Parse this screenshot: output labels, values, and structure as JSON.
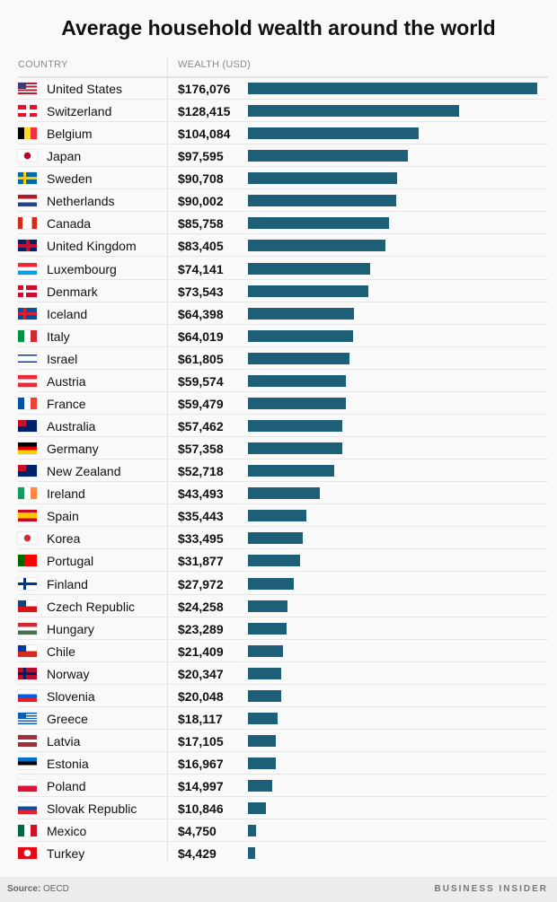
{
  "chart_data": {
    "type": "bar",
    "orientation": "horizontal",
    "title": "Average household wealth around the world",
    "column_headers": [
      "COUNTRY",
      "WEALTH (USD)"
    ],
    "bar_color": "#1e5f78",
    "xlim": [
      0,
      176076
    ],
    "rows": [
      {
        "country": "United States",
        "label": "$176,076",
        "value": 176076,
        "flag": {
          "type": "h",
          "colors": [
            "#b22234",
            "#fff",
            "#b22234",
            "#fff",
            "#b22234",
            "#fff",
            "#b22234"
          ],
          "canton": "#3c3b6e"
        }
      },
      {
        "country": "Switzerland",
        "label": "$128,415",
        "value": 128415,
        "flag": {
          "type": "cross",
          "colors": [
            "#e8112d",
            "#fff"
          ]
        }
      },
      {
        "country": "Belgium",
        "label": "$104,084",
        "value": 104084,
        "flag": {
          "type": "v",
          "colors": [
            "#000",
            "#fdda24",
            "#ef3340"
          ]
        }
      },
      {
        "country": "Japan",
        "label": "$97,595",
        "value": 97595,
        "flag": {
          "type": "disc",
          "colors": [
            "#fff",
            "#bc002d"
          ]
        }
      },
      {
        "country": "Sweden",
        "label": "$90,708",
        "value": 90708,
        "flag": {
          "type": "nordic",
          "colors": [
            "#006aa7",
            "#fecc00"
          ]
        }
      },
      {
        "country": "Netherlands",
        "label": "$90,002",
        "value": 90002,
        "flag": {
          "type": "h",
          "colors": [
            "#ae1c28",
            "#fff",
            "#21468b"
          ]
        }
      },
      {
        "country": "Canada",
        "label": "$85,758",
        "value": 85758,
        "flag": {
          "type": "v",
          "colors": [
            "#d52b1e",
            "#fff",
            "#fff",
            "#d52b1e"
          ]
        }
      },
      {
        "country": "United Kingdom",
        "label": "$83,405",
        "value": 83405,
        "flag": {
          "type": "cross",
          "colors": [
            "#012169",
            "#c8102e"
          ]
        }
      },
      {
        "country": "Luxembourg",
        "label": "$74,141",
        "value": 74141,
        "flag": {
          "type": "h",
          "colors": [
            "#ed2939",
            "#fff",
            "#00a1de"
          ]
        }
      },
      {
        "country": "Denmark",
        "label": "$73,543",
        "value": 73543,
        "flag": {
          "type": "nordic",
          "colors": [
            "#c8102e",
            "#fff"
          ]
        }
      },
      {
        "country": "Iceland",
        "label": "$64,398",
        "value": 64398,
        "flag": {
          "type": "nordic",
          "colors": [
            "#02529c",
            "#dc1e35"
          ]
        }
      },
      {
        "country": "Italy",
        "label": "$64,019",
        "value": 64019,
        "flag": {
          "type": "v",
          "colors": [
            "#009246",
            "#fff",
            "#ce2b37"
          ]
        }
      },
      {
        "country": "Israel",
        "label": "$61,805",
        "value": 61805,
        "flag": {
          "type": "h",
          "colors": [
            "#fff",
            "#0038b8",
            "#fff",
            "#fff",
            "#fff",
            "#0038b8",
            "#fff"
          ]
        }
      },
      {
        "country": "Austria",
        "label": "$59,574",
        "value": 59574,
        "flag": {
          "type": "h",
          "colors": [
            "#ed2939",
            "#fff",
            "#ed2939"
          ]
        }
      },
      {
        "country": "France",
        "label": "$59,479",
        "value": 59479,
        "flag": {
          "type": "v",
          "colors": [
            "#0055a4",
            "#fff",
            "#ef4135"
          ]
        }
      },
      {
        "country": "Australia",
        "label": "$57,462",
        "value": 57462,
        "flag": {
          "type": "h",
          "colors": [
            "#012169"
          ],
          "canton": "#c8102e"
        }
      },
      {
        "country": "Germany",
        "label": "$57,358",
        "value": 57358,
        "flag": {
          "type": "h",
          "colors": [
            "#000",
            "#dd0000",
            "#ffce00"
          ]
        }
      },
      {
        "country": "New Zealand",
        "label": "$52,718",
        "value": 52718,
        "flag": {
          "type": "h",
          "colors": [
            "#012169"
          ],
          "canton": "#c8102e"
        }
      },
      {
        "country": "Ireland",
        "label": "$43,493",
        "value": 43493,
        "flag": {
          "type": "v",
          "colors": [
            "#169b62",
            "#fff",
            "#ff883e"
          ]
        }
      },
      {
        "country": "Spain",
        "label": "$35,443",
        "value": 35443,
        "flag": {
          "type": "h",
          "colors": [
            "#c60b1e",
            "#ffc400",
            "#ffc400",
            "#c60b1e"
          ]
        }
      },
      {
        "country": "Korea",
        "label": "$33,495",
        "value": 33495,
        "flag": {
          "type": "disc",
          "colors": [
            "#fff",
            "#cd2e3a"
          ]
        }
      },
      {
        "country": "Portugal",
        "label": "$31,877",
        "value": 31877,
        "flag": {
          "type": "v",
          "colors": [
            "#006600",
            "#ff0000",
            "#ff0000"
          ]
        }
      },
      {
        "country": "Finland",
        "label": "$27,972",
        "value": 27972,
        "flag": {
          "type": "nordic",
          "colors": [
            "#fff",
            "#003580"
          ]
        }
      },
      {
        "country": "Czech Republic",
        "label": "$24,258",
        "value": 24258,
        "flag": {
          "type": "h",
          "colors": [
            "#fff",
            "#d7141a"
          ],
          "canton": "#11457e"
        }
      },
      {
        "country": "Hungary",
        "label": "$23,289",
        "value": 23289,
        "flag": {
          "type": "h",
          "colors": [
            "#ce2939",
            "#fff",
            "#477050"
          ]
        }
      },
      {
        "country": "Chile",
        "label": "$21,409",
        "value": 21409,
        "flag": {
          "type": "h",
          "colors": [
            "#fff",
            "#d52b1e"
          ],
          "canton": "#0039a6"
        }
      },
      {
        "country": "Norway",
        "label": "$20,347",
        "value": 20347,
        "flag": {
          "type": "nordic",
          "colors": [
            "#ba0c2f",
            "#00205b"
          ]
        }
      },
      {
        "country": "Slovenia",
        "label": "$20,048",
        "value": 20048,
        "flag": {
          "type": "h",
          "colors": [
            "#fff",
            "#005ce5",
            "#ed1c24"
          ]
        }
      },
      {
        "country": "Greece",
        "label": "$18,117",
        "value": 18117,
        "flag": {
          "type": "h",
          "colors": [
            "#0d5eaf",
            "#fff",
            "#0d5eaf",
            "#fff",
            "#0d5eaf",
            "#fff",
            "#0d5eaf",
            "#fff",
            "#0d5eaf"
          ],
          "canton": "#0d5eaf"
        }
      },
      {
        "country": "Latvia",
        "label": "$17,105",
        "value": 17105,
        "flag": {
          "type": "h",
          "colors": [
            "#9e3039",
            "#9e3039",
            "#fff",
            "#9e3039",
            "#9e3039"
          ]
        }
      },
      {
        "country": "Estonia",
        "label": "$16,967",
        "value": 16967,
        "flag": {
          "type": "h",
          "colors": [
            "#0072ce",
            "#000",
            "#fff"
          ]
        }
      },
      {
        "country": "Poland",
        "label": "$14,997",
        "value": 14997,
        "flag": {
          "type": "h",
          "colors": [
            "#fff",
            "#dc143c"
          ]
        }
      },
      {
        "country": "Slovak Republic",
        "label": "$10,846",
        "value": 10846,
        "flag": {
          "type": "h",
          "colors": [
            "#fff",
            "#0b4ea2",
            "#ee1c25"
          ]
        }
      },
      {
        "country": "Mexico",
        "label": "$4,750",
        "value": 4750,
        "flag": {
          "type": "v",
          "colors": [
            "#006847",
            "#fff",
            "#ce1126"
          ]
        }
      },
      {
        "country": "Turkey",
        "label": "$4,429",
        "value": 4429,
        "flag": {
          "type": "disc",
          "colors": [
            "#e30a17",
            "#fff"
          ]
        }
      }
    ]
  },
  "footer": {
    "source_label": "Source:",
    "source": "OECD",
    "brand": "BUSINESS INSIDER"
  }
}
